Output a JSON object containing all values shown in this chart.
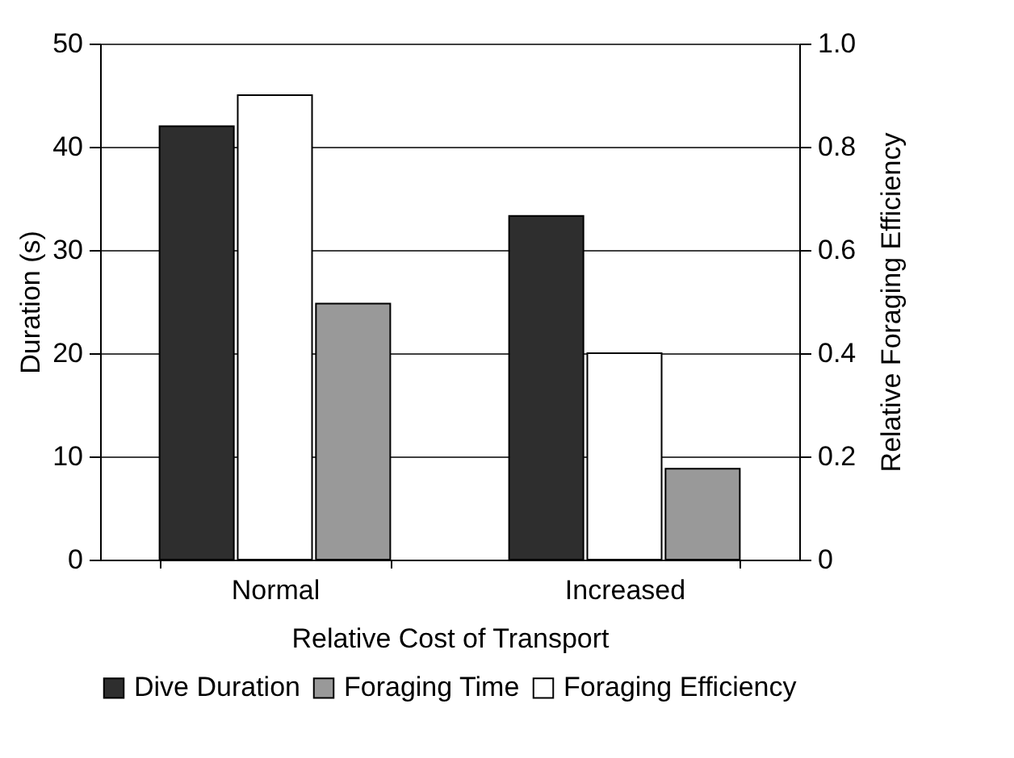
{
  "chart_data": {
    "type": "bar",
    "xlabel": "Relative Cost of Transport",
    "ylabel": "Duration (s)",
    "y2label": "Relative Foraging Efficiency",
    "categories": [
      "Normal",
      "Increased"
    ],
    "series": [
      {
        "name": "Dive Duration",
        "color": "#2e2e2e",
        "values": [
          42,
          33.3
        ]
      },
      {
        "name": "Foraging Efficiency",
        "color": "#ffffff",
        "values": [
          0.9,
          0.4
        ],
        "axis": "y2"
      },
      {
        "name": "Foraging Time",
        "color": "#999999",
        "values": [
          24.8,
          8.8
        ]
      }
    ],
    "ylim": [
      0,
      50
    ],
    "yticks": [
      0,
      10,
      20,
      30,
      40,
      50
    ],
    "y2lim": [
      0,
      1
    ],
    "y2ticks": [
      0,
      {
        "value": 0.2,
        "label": "0.2"
      },
      {
        "value": 0.4,
        "label": "0.4"
      },
      {
        "value": 0.6,
        "label": "0.6"
      },
      {
        "value": 0.8,
        "label": "0.8"
      },
      {
        "value": 1,
        "label": "1.0"
      }
    ],
    "grid": "y",
    "legend": "bottom"
  }
}
